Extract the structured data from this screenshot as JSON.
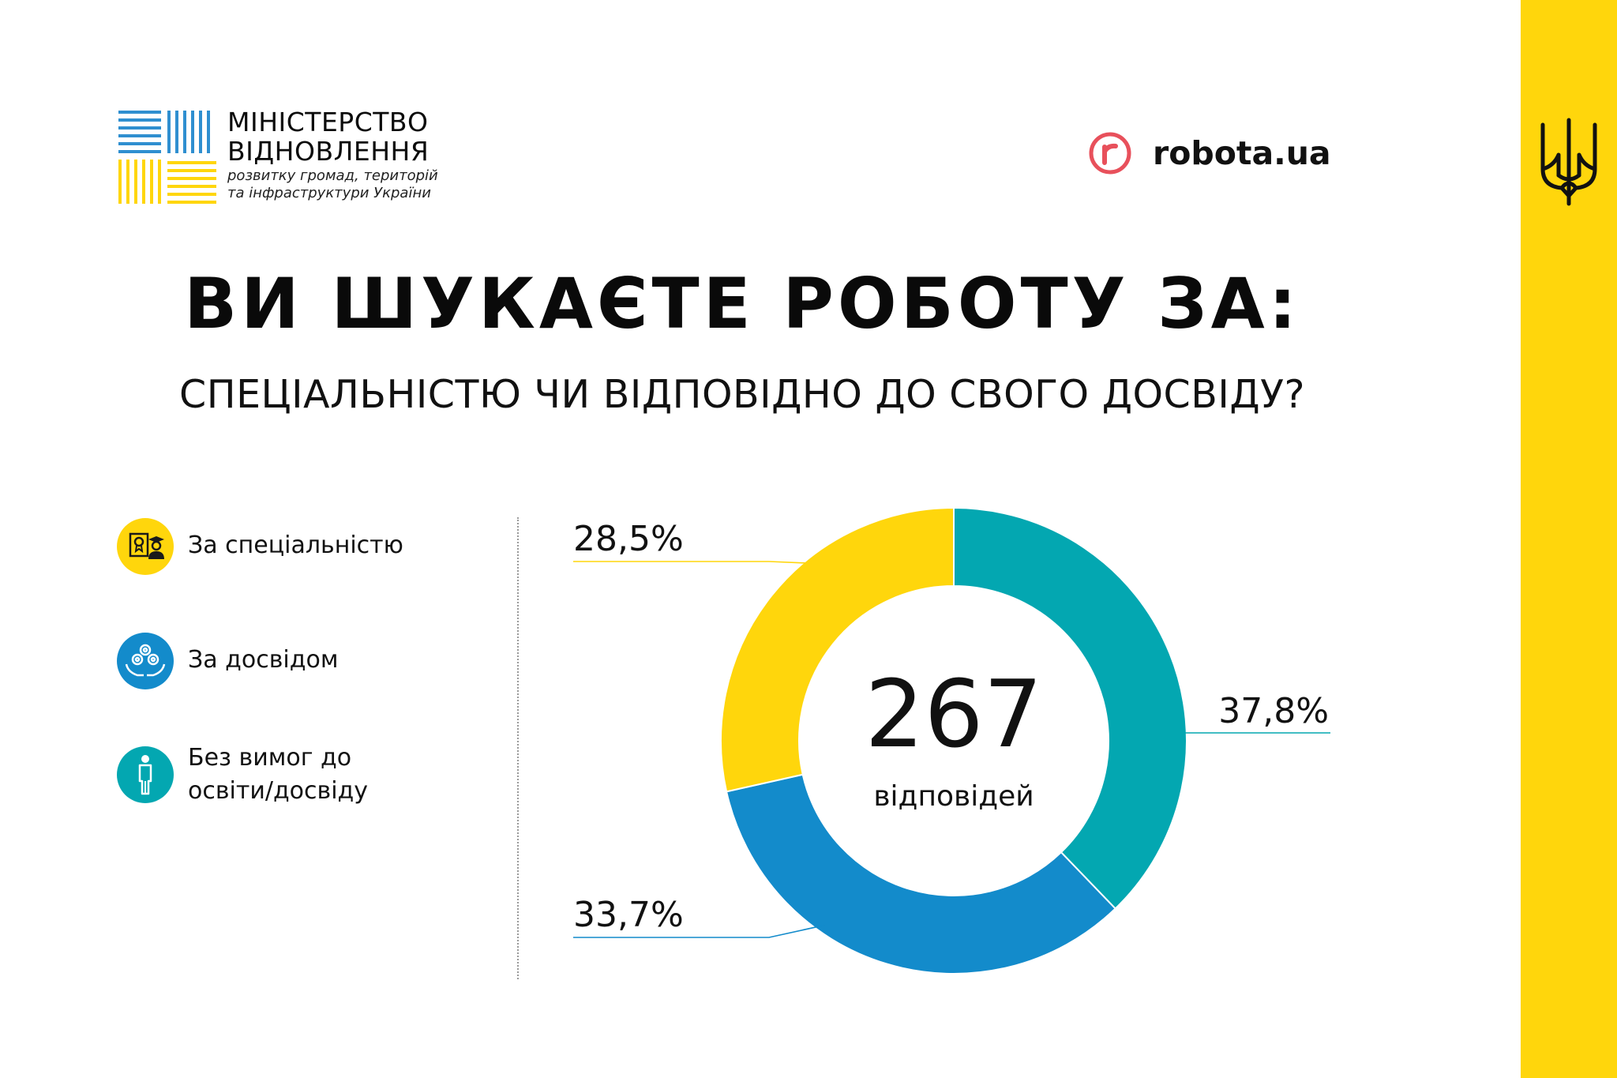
{
  "brand": {
    "ministry_line1": "МІНІСТЕРСТВО",
    "ministry_line2": "ВІДНОВЛЕННЯ",
    "ministry_sub1": "розвитку громад, територій",
    "ministry_sub2": "та інфраструктури України",
    "robota_name": "robota.ua",
    "robota_color": "#E8505B"
  },
  "colors": {
    "yellow": "#FFD60C",
    "blue": "#138BCB",
    "teal": "#03A7B1"
  },
  "legend": [
    {
      "label": "За спеціальністю",
      "icon": "diploma-graduate-icon",
      "color": "#FFD60C"
    },
    {
      "label": "За досвідом",
      "icon": "gears-hands-icon",
      "color": "#138BCB"
    },
    {
      "label_line1": "Без вимог до",
      "label_line2": "освіти/досвіду",
      "icon": "person-icon",
      "color": "#03A7B1"
    }
  ],
  "chart_data": {
    "type": "pie",
    "variant": "donut",
    "title": "ВИ ШУКАЄТЕ РОБОТУ ЗА:",
    "subtitle": "СПЕЦІАЛЬНІСТЮ ЧИ ВІДПОВІДНО ДО СВОГО ДОСВІДУ?",
    "center_value": "267",
    "center_label": "відповідей",
    "slices": [
      {
        "name": "Без вимог до освіти/досвіду",
        "value": 37.8,
        "label": "37,8%",
        "color": "#03A7B1"
      },
      {
        "name": "За досвідом",
        "value": 33.7,
        "label": "33,7%",
        "color": "#138BCB"
      },
      {
        "name": "За спеціальністю",
        "value": 28.5,
        "label": "28,5%",
        "color": "#FFD60C"
      }
    ],
    "legend_position": "left"
  }
}
